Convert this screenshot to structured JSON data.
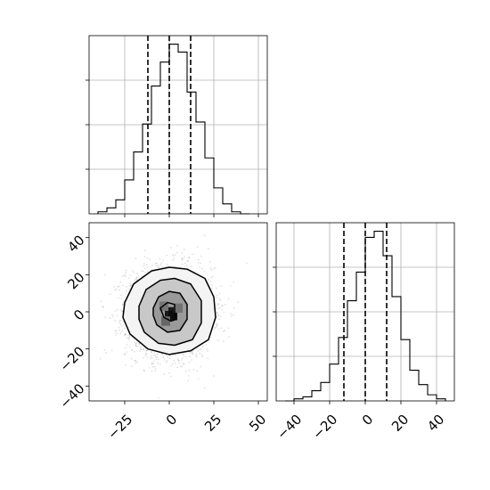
{
  "chart_data": [
    {
      "type": "histogram",
      "panel": "x-marginal",
      "xlim": [
        -45,
        55
      ],
      "bin_edges": [
        -40,
        -35,
        -30,
        -25,
        -20,
        -15,
        -10,
        -5,
        0,
        5,
        10,
        15,
        20,
        25,
        30,
        35,
        40,
        45
      ],
      "counts": [
        1,
        3,
        7,
        17,
        31,
        45,
        64,
        76,
        85,
        81,
        61,
        46,
        28,
        13,
        5,
        1,
        0
      ],
      "quantiles": [
        -12,
        0,
        12
      ],
      "x_ticks": [
        -25,
        0,
        25,
        50
      ],
      "grid": true
    },
    {
      "type": "scatter",
      "panel": "joint",
      "xlim": [
        -45,
        55
      ],
      "ylim": [
        -48,
        48
      ],
      "x_ticks": [
        -25,
        0,
        25,
        50
      ],
      "y_ticks": [
        -40,
        -20,
        0,
        20,
        40
      ],
      "x_tick_labels": [
        "−25",
        "0",
        "25",
        "50"
      ],
      "y_tick_labels": [
        "−40",
        "−20",
        "0",
        "20",
        "40"
      ],
      "distribution": {
        "center": [
          0,
          0
        ],
        "spread": 12,
        "n_points": 3000
      },
      "density_cells": [
        {
          "x": 0,
          "y": 0,
          "w": 5,
          "h": 5,
          "level": 0.9
        },
        {
          "x": 2,
          "y": -2,
          "w": 5,
          "h": 5,
          "level": 0.95
        },
        {
          "x": -3,
          "y": 3,
          "w": 5,
          "h": 5,
          "level": 0.55
        },
        {
          "x": 5,
          "y": 2,
          "w": 5,
          "h": 5,
          "level": 0.55
        },
        {
          "x": -2,
          "y": -5,
          "w": 5,
          "h": 5,
          "level": 0.6
        }
      ],
      "contours": [
        {
          "points": [
            [
              -25,
              5
            ],
            [
              -20,
              15
            ],
            [
              -10,
              22
            ],
            [
              0,
              24
            ],
            [
              10,
              23
            ],
            [
              20,
              18
            ],
            [
              25,
              8
            ],
            [
              26,
              -3
            ],
            [
              22,
              -15
            ],
            [
              12,
              -21
            ],
            [
              0,
              -23
            ],
            [
              -12,
              -20
            ],
            [
              -22,
              -12
            ],
            [
              -26,
              -3
            ]
          ]
        },
        {
          "points": [
            [
              -17,
              3
            ],
            [
              -13,
              12
            ],
            [
              -5,
              17
            ],
            [
              3,
              18
            ],
            [
              12,
              15
            ],
            [
              18,
              6
            ],
            [
              18,
              -6
            ],
            [
              13,
              -15
            ],
            [
              3,
              -18
            ],
            [
              -6,
              -17
            ],
            [
              -14,
              -11
            ],
            [
              -17,
              -4
            ]
          ]
        },
        {
          "points": [
            [
              -9,
              2
            ],
            [
              -6,
              8
            ],
            [
              0,
              11
            ],
            [
              6,
              10
            ],
            [
              10,
              4
            ],
            [
              10,
              -4
            ],
            [
              6,
              -10
            ],
            [
              -1,
              -11
            ],
            [
              -7,
              -7
            ],
            [
              -9,
              -2
            ]
          ]
        },
        {
          "points": [
            [
              -5,
              2
            ],
            [
              -1,
              5
            ],
            [
              3,
              4
            ],
            [
              3,
              0
            ],
            [
              4,
              -4
            ],
            [
              1,
              -5
            ],
            [
              -3,
              -3
            ]
          ]
        }
      ]
    },
    {
      "type": "histogram",
      "panel": "y-marginal",
      "xlim": [
        -50,
        50
      ],
      "bin_edges": [
        -45,
        -40,
        -35,
        -30,
        -25,
        -20,
        -15,
        -10,
        -5,
        0,
        5,
        10,
        15,
        20,
        25,
        30,
        35,
        40,
        45
      ],
      "counts": [
        0,
        1,
        2,
        5,
        9,
        18,
        31,
        49,
        63,
        80,
        83,
        71,
        51,
        30,
        15,
        8,
        3,
        1
      ],
      "quantiles": [
        -12,
        0,
        12
      ],
      "x_ticks": [
        -40,
        -20,
        0,
        20,
        40
      ],
      "x_tick_labels": [
        "−40",
        "−20",
        "0",
        "20",
        "40"
      ],
      "grid": true
    }
  ]
}
